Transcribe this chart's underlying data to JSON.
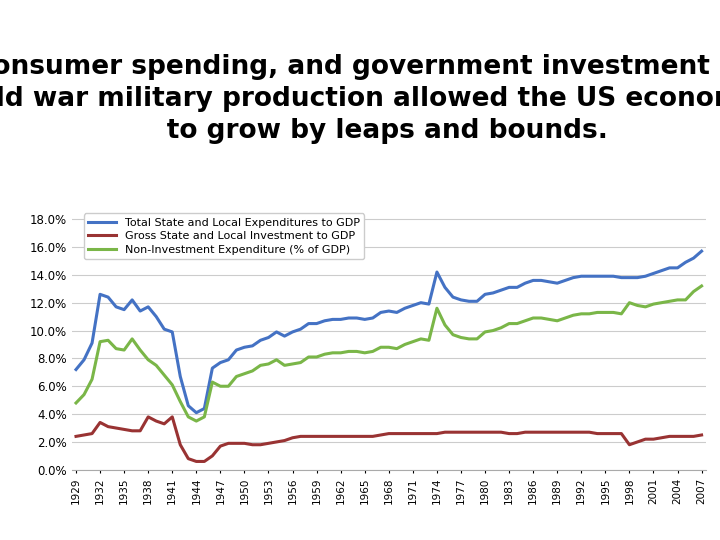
{
  "title": "Consumer spending, and government investment in\ncold war military production allowed the US economy\n      to grow by leaps and bounds.",
  "title_fontsize": 19,
  "title_fontweight": "bold",
  "bg_color": "#ffffff",
  "chart_bg": "#ffffff",
  "years": [
    1929,
    1930,
    1931,
    1932,
    1933,
    1934,
    1935,
    1936,
    1937,
    1938,
    1939,
    1940,
    1941,
    1942,
    1943,
    1944,
    1945,
    1946,
    1947,
    1948,
    1949,
    1950,
    1951,
    1952,
    1953,
    1954,
    1955,
    1956,
    1957,
    1958,
    1959,
    1960,
    1961,
    1962,
    1963,
    1964,
    1965,
    1966,
    1967,
    1968,
    1969,
    1970,
    1971,
    1972,
    1973,
    1974,
    1975,
    1976,
    1977,
    1978,
    1979,
    1980,
    1981,
    1982,
    1983,
    1984,
    1985,
    1986,
    1987,
    1988,
    1989,
    1990,
    1991,
    1992,
    1993,
    1994,
    1995,
    1996,
    1997,
    1998,
    1999,
    2000,
    2001,
    2002,
    2003,
    2004,
    2005,
    2006,
    2007
  ],
  "blue": [
    0.072,
    0.079,
    0.091,
    0.126,
    0.124,
    0.117,
    0.115,
    0.122,
    0.114,
    0.117,
    0.11,
    0.101,
    0.099,
    0.067,
    0.046,
    0.041,
    0.044,
    0.073,
    0.077,
    0.079,
    0.086,
    0.088,
    0.089,
    0.093,
    0.095,
    0.099,
    0.096,
    0.099,
    0.101,
    0.105,
    0.105,
    0.107,
    0.108,
    0.108,
    0.109,
    0.109,
    0.108,
    0.109,
    0.113,
    0.114,
    0.113,
    0.116,
    0.118,
    0.12,
    0.119,
    0.142,
    0.131,
    0.124,
    0.122,
    0.121,
    0.121,
    0.126,
    0.127,
    0.129,
    0.131,
    0.131,
    0.134,
    0.136,
    0.136,
    0.135,
    0.134,
    0.136,
    0.138,
    0.139,
    0.139,
    0.139,
    0.139,
    0.139,
    0.138,
    0.138,
    0.138,
    0.139,
    0.141,
    0.143,
    0.145,
    0.145,
    0.149,
    0.152,
    0.157
  ],
  "red": [
    0.024,
    0.025,
    0.026,
    0.034,
    0.031,
    0.03,
    0.029,
    0.028,
    0.028,
    0.038,
    0.035,
    0.033,
    0.038,
    0.018,
    0.008,
    0.006,
    0.006,
    0.01,
    0.017,
    0.019,
    0.019,
    0.019,
    0.018,
    0.018,
    0.019,
    0.02,
    0.021,
    0.023,
    0.024,
    0.024,
    0.024,
    0.024,
    0.024,
    0.024,
    0.024,
    0.024,
    0.024,
    0.024,
    0.025,
    0.026,
    0.026,
    0.026,
    0.026,
    0.026,
    0.026,
    0.026,
    0.027,
    0.027,
    0.027,
    0.027,
    0.027,
    0.027,
    0.027,
    0.027,
    0.026,
    0.026,
    0.027,
    0.027,
    0.027,
    0.027,
    0.027,
    0.027,
    0.027,
    0.027,
    0.027,
    0.026,
    0.026,
    0.026,
    0.026,
    0.018,
    0.02,
    0.022,
    0.022,
    0.023,
    0.024,
    0.024,
    0.024,
    0.024,
    0.025
  ],
  "green": [
    0.048,
    0.054,
    0.065,
    0.092,
    0.093,
    0.087,
    0.086,
    0.094,
    0.086,
    0.079,
    0.075,
    0.068,
    0.061,
    0.049,
    0.038,
    0.035,
    0.038,
    0.063,
    0.06,
    0.06,
    0.067,
    0.069,
    0.071,
    0.075,
    0.076,
    0.079,
    0.075,
    0.076,
    0.077,
    0.081,
    0.081,
    0.083,
    0.084,
    0.084,
    0.085,
    0.085,
    0.084,
    0.085,
    0.088,
    0.088,
    0.087,
    0.09,
    0.092,
    0.094,
    0.093,
    0.116,
    0.104,
    0.097,
    0.095,
    0.094,
    0.094,
    0.099,
    0.1,
    0.102,
    0.105,
    0.105,
    0.107,
    0.109,
    0.109,
    0.108,
    0.107,
    0.109,
    0.111,
    0.112,
    0.112,
    0.113,
    0.113,
    0.113,
    0.112,
    0.12,
    0.118,
    0.117,
    0.119,
    0.12,
    0.121,
    0.122,
    0.122,
    0.128,
    0.132
  ],
  "blue_color": "#4472C4",
  "red_color": "#993333",
  "green_color": "#7AB648",
  "blue_label": "Total State and Local Expenditures to GDP",
  "red_label": "Gross State and Local Investment to GDP",
  "green_label": "Non-Investment Expenditure (% of GDP)",
  "ylim": [
    0.0,
    0.19
  ],
  "yticks": [
    0.0,
    0.02,
    0.04,
    0.06,
    0.08,
    0.1,
    0.12,
    0.14,
    0.16,
    0.18
  ],
  "xtick_years": [
    1929,
    1932,
    1935,
    1938,
    1941,
    1944,
    1947,
    1950,
    1953,
    1956,
    1959,
    1962,
    1965,
    1968,
    1971,
    1974,
    1977,
    1980,
    1983,
    1986,
    1989,
    1992,
    1995,
    1998,
    2001,
    2004,
    2007
  ]
}
